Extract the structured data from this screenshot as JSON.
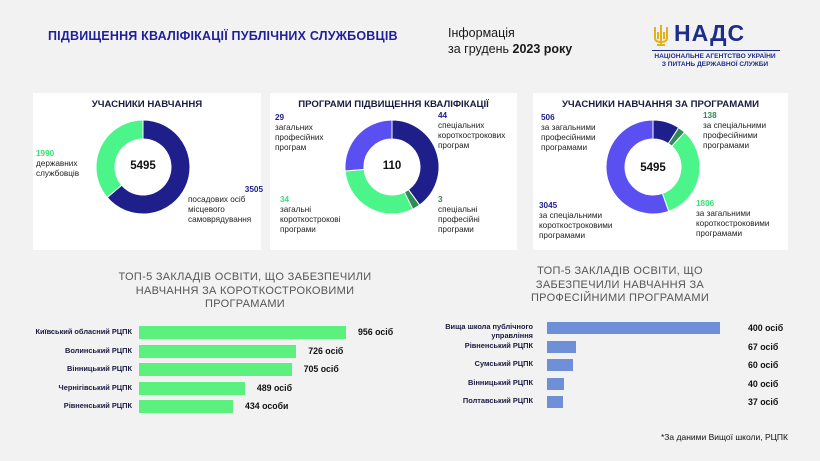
{
  "header": {
    "title": "ПІДВИЩЕННЯ КВАЛІФІКАЦІЇ ПУБЛІЧНИХ СЛУЖБОВЦІВ",
    "info_line1": "Інформація",
    "info_line2_prefix": "за грудень ",
    "info_year": "2023 року"
  },
  "logo": {
    "brand": "НАДС",
    "sub1": "НАЦІОНАЛЬНЕ АГЕНТСТВО УКРАЇНИ",
    "sub2": "З ПИТАНЬ ДЕРЖАВНОЇ СЛУЖБИ"
  },
  "footnote": "*За даними Вищої школи, РЦПК",
  "chart_data": [
    {
      "type": "pie",
      "title": "УЧАСНИКИ НАВЧАННЯ",
      "total": "5495",
      "slices": [
        {
          "value": 3505,
          "label": "посадових осіб місцевого самоврядування",
          "color": "#1f1f8c"
        },
        {
          "value": 1990,
          "label": "державних службовців",
          "color": "#4cf58a"
        }
      ]
    },
    {
      "type": "pie",
      "title": "ПРОГРАМИ ПІДВИЩЕННЯ КВАЛІФІКАЦІЇ",
      "total": "110",
      "slices": [
        {
          "value": 44,
          "label": "спеціальних короткострокових програм",
          "color": "#1f1f8c"
        },
        {
          "value": 3,
          "label": "спеціальні професійні програми",
          "color": "#2e8b57"
        },
        {
          "value": 34,
          "label": "загальні короткострокові програми",
          "color": "#4cf58a"
        },
        {
          "value": 29,
          "label": "загальних професійних програм",
          "color": "#5a4ff0"
        }
      ]
    },
    {
      "type": "pie",
      "title": "УЧАСНИКИ НАВЧАННЯ ЗА ПРОГРАМАМИ",
      "total": "5495",
      "slices": [
        {
          "value": 506,
          "label": "за загальними професійними програмами",
          "color": "#1f1f8c"
        },
        {
          "value": 138,
          "label": "за спеціальними професійними програмами",
          "color": "#2e8b57"
        },
        {
          "value": 1806,
          "label": "за загальними короткостроковими програмами",
          "color": "#4cf58a"
        },
        {
          "value": 3045,
          "label": "за спеціальними короткостроковими програмами",
          "color": "#5a4ff0"
        }
      ]
    },
    {
      "type": "bar",
      "title": "ТОП-5 ЗАКЛАДІВ ОСВІТИ, ЩО ЗАБЕЗПЕЧИЛИ НАВЧАННЯ ЗА КОРОТКОСТРОКОВИМИ ПРОГРАМАМИ",
      "categories": [
        "Київський обласний РЦПК",
        "Волинський РЦПК",
        "Вінницький РЦПК",
        "Чернігівський РЦПК",
        "Рівненський РЦПК"
      ],
      "values": [
        956,
        726,
        705,
        489,
        434
      ],
      "value_labels": [
        "956 осіб",
        "726 осіб",
        "705 осіб",
        "489 осіб",
        "434 особи"
      ],
      "color": "#5cf07e"
    },
    {
      "type": "bar",
      "title": "ТОП-5 ЗАКЛАДІВ ОСВІТИ, ЩО ЗАБЕЗПЕЧИЛИ НАВЧАННЯ ЗА ПРОФЕСІЙНИМИ ПРОГРАМАМИ",
      "categories": [
        "Вища школа публічного управління",
        "Рівненський РЦПК",
        "Сумський РЦПК",
        "Вінницький РЦПК",
        "Полтавський РЦПК"
      ],
      "values": [
        400,
        67,
        60,
        40,
        37
      ],
      "value_labels": [
        "400 осіб",
        "67 осіб",
        "60 осіб",
        "40 осіб",
        "37 осіб"
      ],
      "color": "#6f8fd8"
    }
  ]
}
